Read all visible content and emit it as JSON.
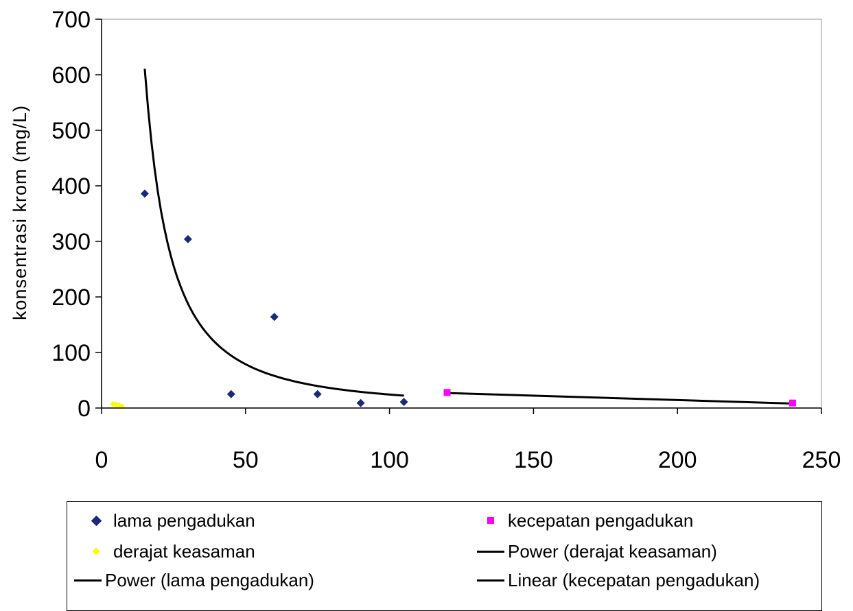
{
  "chart_data": {
    "type": "scatter",
    "title": "",
    "xlabel": "",
    "ylabel": "konsentrasi krom (mg/L)",
    "xlim": [
      0,
      250
    ],
    "ylim": [
      0,
      700
    ],
    "xticks": [
      "0",
      "50",
      "100",
      "150",
      "200",
      "250"
    ],
    "yticks": [
      "0",
      "100",
      "200",
      "300",
      "400",
      "500",
      "600",
      "700"
    ],
    "grid": false,
    "legend_position": "bottom",
    "series": [
      {
        "name": "lama pengadukan",
        "marker": "diamond",
        "color": "#1a2a7a",
        "x": [
          15,
          30,
          45,
          60,
          75,
          90,
          105
        ],
        "y": [
          386,
          304,
          25,
          164,
          25,
          9,
          11
        ]
      },
      {
        "name": "kecepatan pengadukan",
        "marker": "square",
        "color": "#ff00ff",
        "x": [
          120,
          240
        ],
        "y": [
          28,
          9
        ]
      },
      {
        "name": "derajat keasaman",
        "marker": "diamond",
        "color": "#ffff00",
        "x": [
          4,
          5,
          6,
          7
        ],
        "y": [
          7,
          6,
          5,
          3
        ]
      }
    ],
    "trendlines": [
      {
        "name": "Power (derajat keasaman)",
        "type": "power",
        "color": "#000000",
        "coefficient": 30,
        "exponent": -1.1,
        "x_range": [
          4,
          7
        ]
      },
      {
        "name": "Power (lama pengadukan)",
        "type": "power",
        "color": "#000000",
        "coefficient": 61000,
        "exponent": -1.7,
        "x_range": [
          15,
          105
        ]
      },
      {
        "name": "Linear (kecepatan pengadukan)",
        "type": "linear",
        "color": "#000000",
        "points": [
          [
            120,
            27
          ],
          [
            240,
            8
          ]
        ]
      }
    ]
  },
  "legend": {
    "items": [
      {
        "label": "lama pengadukan",
        "symbol": "diamond-navy"
      },
      {
        "label": "kecepatan pengadukan",
        "symbol": "square-magenta"
      },
      {
        "label": "derajat keasaman",
        "symbol": "diamond-yellow"
      },
      {
        "label": "Power (derajat keasaman)",
        "symbol": "line-black"
      },
      {
        "label": "Power (lama pengadukan)",
        "symbol": "line-black"
      },
      {
        "label": "Linear (kecepatan pengadukan)",
        "symbol": "line-black"
      }
    ]
  }
}
